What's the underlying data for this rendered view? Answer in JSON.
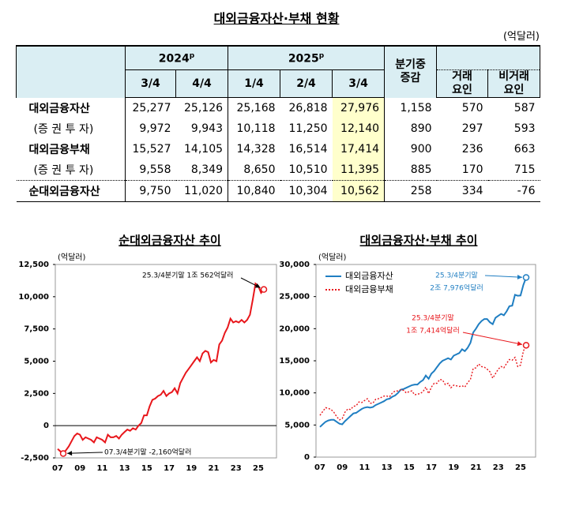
{
  "table": {
    "title": "대외금융자산·부채 현황",
    "unit": "(억달러)",
    "header": {
      "years": [
        {
          "text": "2024",
          "sup": "p"
        },
        {
          "text": "2025",
          "sup": "p"
        }
      ],
      "quarters": [
        "3/4",
        "4/4",
        "1/4",
        "2/4",
        "3/4"
      ],
      "change": "분기중\n증감",
      "factors": [
        "거래\n요인",
        "비거래\n요인"
      ]
    },
    "rows": [
      [
        "대외금융자산",
        "25,277",
        "25,126",
        "25,168",
        "26,818",
        "27,976",
        "1,158",
        "570",
        "587"
      ],
      [
        "(증 권 투 자)",
        "9,972",
        "9,943",
        "10,118",
        "11,250",
        "12,140",
        "890",
        "297",
        "593"
      ],
      [
        "대외금융부채",
        "15,527",
        "14,105",
        "14,328",
        "16,514",
        "17,414",
        "900",
        "236",
        "663"
      ],
      [
        "(증 권 투 자)",
        "9,558",
        "8,349",
        "8,650",
        "10,510",
        "11,395",
        "885",
        "170",
        "715"
      ],
      [
        "순대외금융자산",
        "9,750",
        "11,020",
        "10,840",
        "10,304",
        "10,562",
        "258",
        "334",
        "-76"
      ]
    ]
  },
  "chart_data": [
    {
      "type": "line",
      "title": "순대외금융자산 추이",
      "y_unit": "(억달러)",
      "zero_line": true,
      "categories": [
        "07",
        null,
        null,
        null,
        null,
        null,
        null,
        null,
        "09",
        null,
        null,
        null,
        null,
        null,
        null,
        null,
        "11",
        null,
        null,
        null,
        null,
        null,
        null,
        null,
        "13",
        null,
        null,
        null,
        null,
        null,
        null,
        null,
        "15",
        null,
        null,
        null,
        null,
        null,
        null,
        null,
        "17",
        null,
        null,
        null,
        null,
        null,
        null,
        null,
        "19",
        null,
        null,
        null,
        null,
        null,
        null,
        null,
        "21",
        null,
        null,
        null,
        null,
        null,
        null,
        null,
        "23",
        null,
        null,
        null,
        null,
        null,
        null,
        null,
        "25",
        null,
        null
      ],
      "series": [
        {
          "name": "순대외금융자산",
          "color": "#e8161b",
          "style": "solid",
          "values": [
            -1800,
            -2000,
            -2160,
            -1900,
            -1600,
            -1200,
            -800,
            -600,
            -700,
            -1100,
            -900,
            -1000,
            -1100,
            -1300,
            -900,
            -1000,
            -1100,
            -1300,
            -700,
            -900,
            -900,
            -800,
            -1000,
            -700,
            -500,
            -300,
            -400,
            -200,
            -300,
            0,
            200,
            800,
            800,
            1500,
            2000,
            2100,
            2300,
            2400,
            2700,
            2300,
            2500,
            2600,
            2900,
            2500,
            3300,
            3700,
            4100,
            4400,
            4700,
            5000,
            5300,
            5000,
            5600,
            5800,
            5700,
            4900,
            5100,
            5000,
            6300,
            6600,
            7200,
            7600,
            8300,
            8000,
            8100,
            8000,
            8200,
            8000,
            8200,
            8600,
            9750,
            11020,
            10840,
            10304,
            10562
          ]
        }
      ],
      "ylim": [
        -2500,
        12500
      ],
      "yticks": [
        {
          "value": 12500,
          "label": "12,500"
        },
        {
          "value": 10000,
          "label": "10,000"
        },
        {
          "value": 7500,
          "label": "7,500"
        },
        {
          "value": 5000,
          "label": "5,000"
        },
        {
          "value": 2500,
          "label": "2,500"
        },
        0,
        {
          "value": -2500,
          "label": "-2,500"
        }
      ],
      "annotations": [
        {
          "lines": [
            "25.3/4분기말 1조 562억달러"
          ],
          "color": "#000000"
        },
        {
          "lines": [
            "07.3/4분기말 -2,160억달러"
          ],
          "color": "#000000"
        }
      ]
    },
    {
      "type": "line",
      "title": "대외금융자산·부채 추이",
      "y_unit": "(억달러)",
      "legend": "upper left",
      "categories": [
        "07",
        null,
        null,
        null,
        null,
        null,
        null,
        null,
        "09",
        null,
        null,
        null,
        null,
        null,
        null,
        null,
        "11",
        null,
        null,
        null,
        null,
        null,
        null,
        null,
        "13",
        null,
        null,
        null,
        null,
        null,
        null,
        null,
        "15",
        null,
        null,
        null,
        null,
        null,
        null,
        null,
        "17",
        null,
        null,
        null,
        null,
        null,
        null,
        null,
        "19",
        null,
        null,
        null,
        null,
        null,
        null,
        null,
        "21",
        null,
        null,
        null,
        null,
        null,
        null,
        null,
        "23",
        null,
        null,
        null,
        null,
        null,
        null,
        null,
        "25",
        null,
        null
      ],
      "series": [
        {
          "name": "대외금융자산",
          "color": "#1f7ec2",
          "style": "solid",
          "values": [
            4700,
            5100,
            5500,
            5700,
            5800,
            5800,
            5500,
            5200,
            5100,
            5600,
            6000,
            6400,
            6800,
            6900,
            7200,
            7500,
            7700,
            7800,
            7700,
            7800,
            8100,
            8300,
            8500,
            8700,
            9000,
            9100,
            9400,
            9600,
            10000,
            10500,
            10600,
            10800,
            11000,
            11200,
            11300,
            11300,
            11700,
            12000,
            12700,
            12200,
            13000,
            13400,
            14000,
            14600,
            15000,
            15200,
            15400,
            15200,
            15800,
            16000,
            16200,
            16800,
            16500,
            17000,
            17800,
            19400,
            20000,
            20700,
            21200,
            21500,
            21500,
            21000,
            20700,
            21700,
            22000,
            22300,
            22100,
            22700,
            23500,
            23600,
            25277,
            25126,
            25168,
            26818,
            27976
          ]
        },
        {
          "name": "대외금융부채",
          "color": "#e8161b",
          "style": "dotted",
          "values": [
            6500,
            7100,
            7700,
            7600,
            7400,
            7000,
            6300,
            5800,
            6000,
            7000,
            7500,
            7400,
            7900,
            8000,
            8600,
            8500,
            8800,
            9100,
            8400,
            8400,
            9000,
            9100,
            9300,
            9500,
            9500,
            9400,
            10000,
            10300,
            10300,
            10500,
            10400,
            10000,
            10200,
            10300,
            9700,
            9800,
            9900,
            10200,
            10900,
            9900,
            10900,
            11500,
            11500,
            12100,
            12000,
            11300,
            11500,
            10800,
            11200,
            11100,
            11000,
            11100,
            10900,
            11600,
            12100,
            13800,
            13900,
            14500,
            14100,
            14000,
            13700,
            13300,
            12300,
            13000,
            13700,
            14100,
            13900,
            14600,
            15200,
            15100,
            15527,
            14105,
            14328,
            16514,
            17414
          ]
        }
      ],
      "ylim": [
        0,
        30000
      ],
      "yticks": [
        {
          "value": 30000,
          "label": "30,000"
        },
        {
          "value": 25000,
          "label": "25,000"
        },
        {
          "value": 20000,
          "label": "20,000"
        },
        {
          "value": 15000,
          "label": "15,000"
        },
        {
          "value": 10000,
          "label": "10,000"
        },
        {
          "value": 5000,
          "label": "5,000"
        },
        0
      ],
      "annotations": [
        {
          "lines": [
            "25.3/4분기말",
            "2조 7,976억달러"
          ],
          "color": "#1f7ec2"
        },
        {
          "lines": [
            "25.3/4분기말",
            "1조 7,414억달러"
          ],
          "color": "#e8161b"
        }
      ]
    }
  ]
}
